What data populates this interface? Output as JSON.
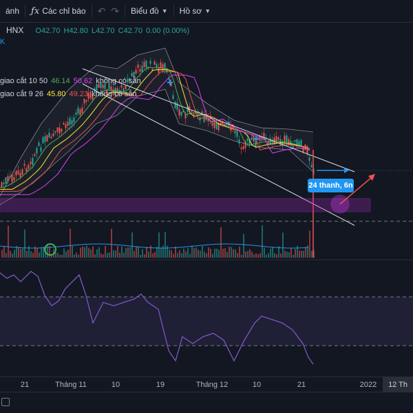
{
  "toolbar": {
    "partial_tab": "ánh",
    "indicators_label": "Các chỉ báo",
    "indicators_icon": "fx-icon",
    "chart_type_label": "Biểu đồ",
    "profile_label": "Hồ sơ"
  },
  "legend": {
    "symbol": "HNX",
    "open": "O42.70",
    "high": "H42.80",
    "low": "L42.70",
    "close": "C42.70",
    "change": "0.00 (0.00%)",
    "sub_line": "K",
    "ind1_name": "giao cắt 10 50",
    "ind1_v1": "46.14",
    "ind1_v2": "50.62",
    "ind1_na": "không có sẵn",
    "ind2_name": "giao cắt 9 26",
    "ind2_v1": "45.80",
    "ind2_v2": "49.23",
    "ind2_na": "không có sẵn"
  },
  "annotation": {
    "label": "24 thanh, 6n"
  },
  "time_axis": {
    "ticks": [
      "21",
      "Tháng 11",
      "10",
      "19",
      "Tháng 12",
      "10",
      "21",
      "2022"
    ],
    "badge": "12 Th"
  },
  "colors": {
    "bg": "#131722",
    "up": "#26a69a",
    "down": "#ef5350",
    "rsi": "#7e57c2",
    "zone": "#9c27b0",
    "ma1": "#4caf50",
    "ma2": "#e040fb",
    "ma3": "#ffeb3b",
    "ma4": "#ef5350",
    "label_bg": "#2196f3"
  }
}
